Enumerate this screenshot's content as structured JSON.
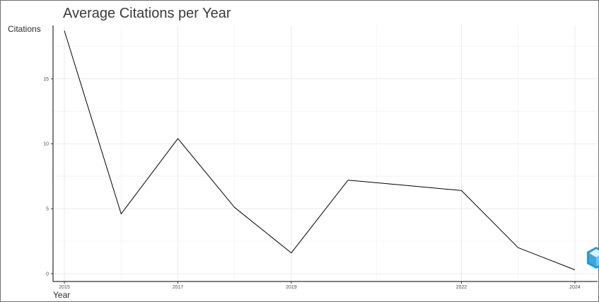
{
  "chart_data": {
    "type": "line",
    "title": "Average Citations per Year",
    "xlabel": "Year",
    "ylabel": "Citations",
    "x_ticks": [
      "2015",
      "2017",
      "2019",
      "2022",
      "2024"
    ],
    "y_ticks": [
      "0",
      "5",
      "10",
      "15"
    ],
    "x": [
      2015,
      2016,
      2017,
      2018,
      2019,
      2020,
      2021,
      2022,
      2023,
      2024
    ],
    "values": [
      18.7,
      4.6,
      10.4,
      5.1,
      1.6,
      7.2,
      6.8,
      6.4,
      2.0,
      0.3
    ],
    "xlim": [
      2014.8,
      2024.4
    ],
    "ylim": [
      -0.6,
      19.1
    ],
    "grid": true,
    "line_color": "#000000"
  },
  "watermark": {
    "icon": "cube-logo-icon",
    "colors": [
      "#1f9bd8",
      "#6cc6f0"
    ]
  }
}
